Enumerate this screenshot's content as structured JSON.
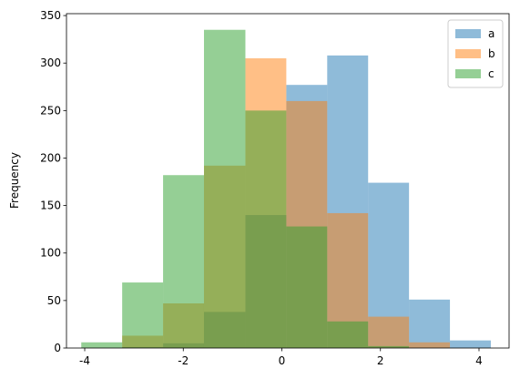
{
  "chart_data": {
    "type": "histogram",
    "y_label": "Frequency",
    "bins": [
      -4.07,
      -3.24,
      -2.41,
      -1.58,
      -0.74,
      0.09,
      0.92,
      1.75,
      2.58,
      3.41,
      4.24
    ],
    "series": [
      {
        "name": "a",
        "color": "#1f77b4",
        "values": [
          0,
          1,
          5,
          38,
          140,
          277,
          308,
          174,
          51,
          8
        ]
      },
      {
        "name": "b",
        "color": "#ff7f0e",
        "values": [
          0,
          13,
          47,
          192,
          305,
          260,
          142,
          33,
          6,
          0
        ]
      },
      {
        "name": "c",
        "color": "#2ca02c",
        "values": [
          6,
          69,
          182,
          335,
          250,
          128,
          28,
          2,
          0,
          0
        ]
      }
    ],
    "opacity": 0.5,
    "xlim": [
      -4.37,
      4.61
    ],
    "xticks": [
      -4,
      -2,
      0,
      2,
      4
    ],
    "ylim": [
      0,
      352
    ],
    "yticks": [
      0,
      50,
      100,
      150,
      200,
      250,
      300,
      350
    ],
    "legend": "upper right"
  }
}
